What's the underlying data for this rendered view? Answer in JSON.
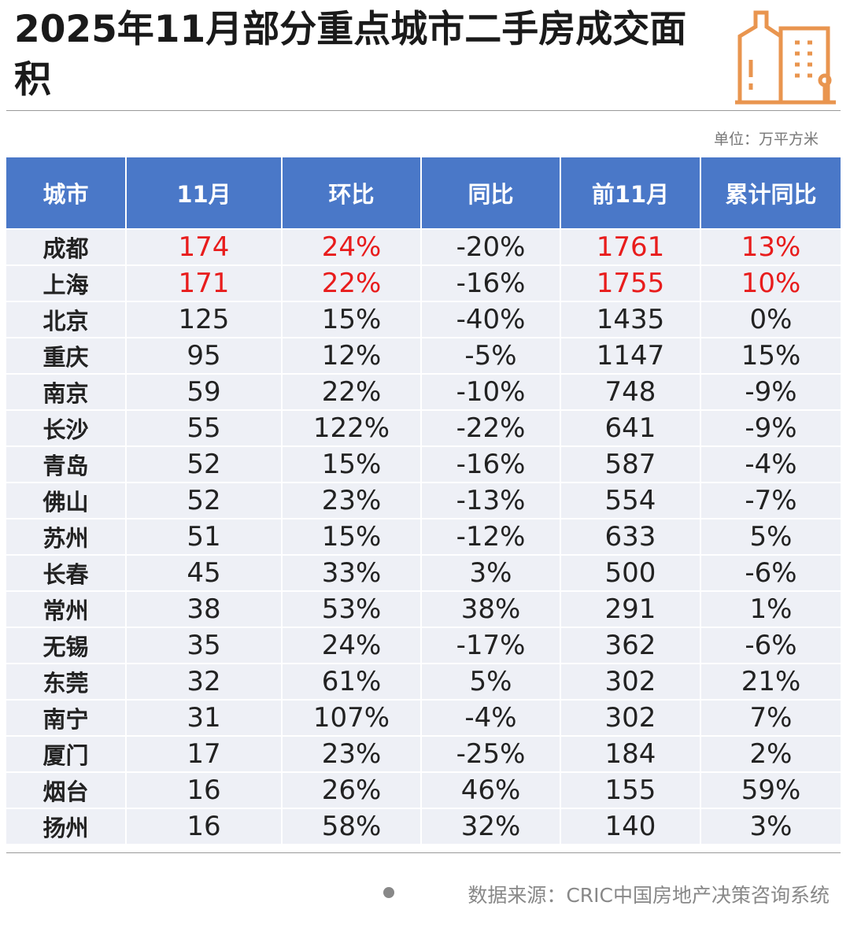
{
  "header": {
    "title": "2025年11月部分重点城市二手房成交面积",
    "unit": "单位：万平方米"
  },
  "table": {
    "columns": [
      "城市",
      "11月",
      "环比",
      "同比",
      "前11月",
      "累计同比"
    ],
    "rows": [
      [
        "成都",
        "174",
        "24%",
        "-20%",
        "1761",
        "13%"
      ],
      [
        "上海",
        "171",
        "22%",
        "-16%",
        "1755",
        "10%"
      ],
      [
        "北京",
        "125",
        "15%",
        "-40%",
        "1435",
        "0%"
      ],
      [
        "重庆",
        "95",
        "12%",
        "-5%",
        "1147",
        "15%"
      ],
      [
        "南京",
        "59",
        "22%",
        "-10%",
        "748",
        "-9%"
      ],
      [
        "长沙",
        "55",
        "122%",
        "-22%",
        "641",
        "-9%"
      ],
      [
        "青岛",
        "52",
        "15%",
        "-16%",
        "587",
        "-4%"
      ],
      [
        "佛山",
        "52",
        "23%",
        "-13%",
        "554",
        "-7%"
      ],
      [
        "苏州",
        "51",
        "15%",
        "-12%",
        "633",
        "5%"
      ],
      [
        "长春",
        "45",
        "33%",
        "3%",
        "500",
        "-6%"
      ],
      [
        "常州",
        "38",
        "53%",
        "38%",
        "291",
        "1%"
      ],
      [
        "无锡",
        "35",
        "24%",
        "-17%",
        "362",
        "-6%"
      ],
      [
        "东莞",
        "32",
        "61%",
        "5%",
        "302",
        "21%"
      ],
      [
        "南宁",
        "31",
        "107%",
        "-4%",
        "302",
        "7%"
      ],
      [
        "厦门",
        "17",
        "23%",
        "-25%",
        "184",
        "2%"
      ],
      [
        "烟台",
        "16",
        "26%",
        "46%",
        "155",
        "59%"
      ],
      [
        "扬州",
        "16",
        "58%",
        "32%",
        "140",
        "3%"
      ]
    ]
  },
  "footer": {
    "source": "数据来源：CRIC中国房地产决策咨询系统"
  }
}
